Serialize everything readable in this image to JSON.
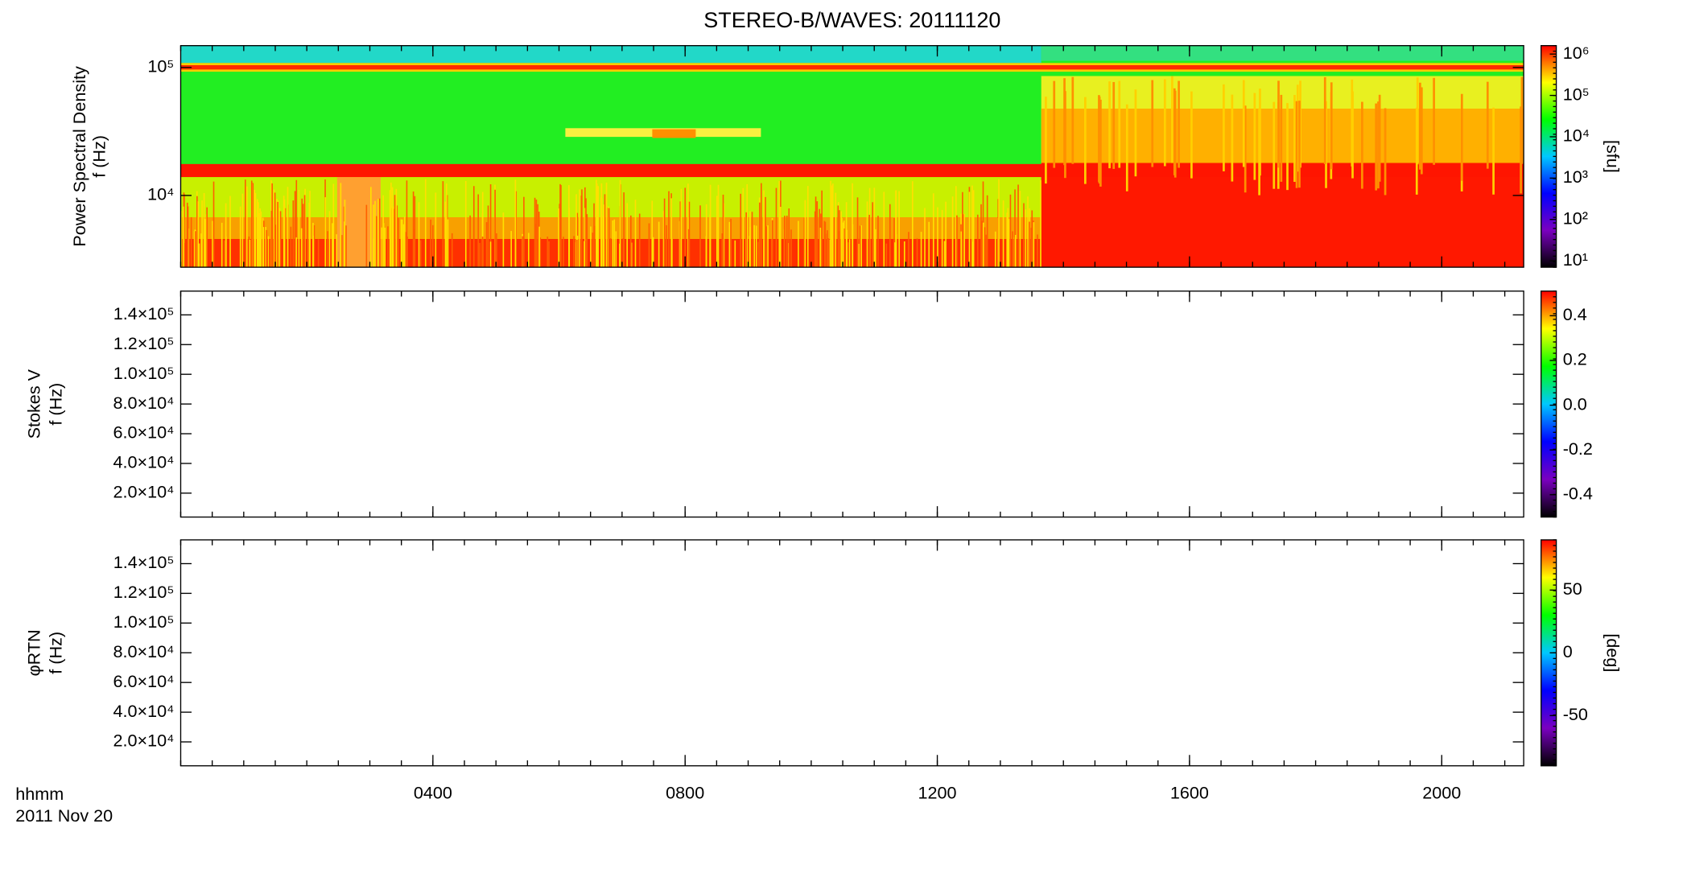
{
  "chart_data": [
    {
      "type": "spectrogram",
      "title": "STEREO-B/WAVES: 20111120",
      "ylabel": "Power Spectral Density",
      "ylabel2": "f (Hz)",
      "ylog": true,
      "ylim": [
        2750,
        148000
      ],
      "yticks": [
        {
          "value": 10000,
          "label": "10⁴"
        },
        {
          "value": 100000,
          "label": "10⁵"
        }
      ],
      "colorbar_label": "[sfu]",
      "clog": true,
      "clim": [
        7,
        1600000
      ],
      "cticks": [
        {
          "value": 10,
          "label": "10¹"
        },
        {
          "value": 100,
          "label": "10²"
        },
        {
          "value": 1000,
          "label": "10³"
        },
        {
          "value": 10000,
          "label": "10⁴"
        },
        {
          "value": 100000,
          "label": "10⁵"
        },
        {
          "value": 1000000,
          "label": "10⁶"
        }
      ],
      "colormap": [
        "#000000",
        "#7a00c0",
        "#0000ff",
        "#00c8ff",
        "#00ff00",
        "#ffff00",
        "#ff0000"
      ]
    },
    {
      "type": "spectrogram",
      "ylabel": "Stokes V",
      "ylabel2": "f (Hz)",
      "ylog": false,
      "ylim": [
        3900,
        156000
      ],
      "yticks": [
        {
          "value": 20000,
          "label": "2.0×10⁴"
        },
        {
          "value": 40000,
          "label": "4.0×10⁴"
        },
        {
          "value": 60000,
          "label": "6.0×10⁴"
        },
        {
          "value": 80000,
          "label": "8.0×10⁴"
        },
        {
          "value": 100000,
          "label": "1.0×10⁵"
        },
        {
          "value": 120000,
          "label": "1.2×10⁵"
        },
        {
          "value": 140000,
          "label": "1.4×10⁵"
        }
      ],
      "clog": false,
      "clim": [
        -0.5,
        0.51
      ],
      "cticks": [
        {
          "value": -0.4,
          "label": "-0.4"
        },
        {
          "value": -0.2,
          "label": "-0.2"
        },
        {
          "value": 0,
          "label": "0.0"
        },
        {
          "value": 0.2,
          "label": "0.2"
        },
        {
          "value": 0.4,
          "label": "0.4"
        }
      ]
    },
    {
      "type": "spectrogram",
      "ylabel": "φRTN",
      "ylabel2": "f (Hz)",
      "ylog": false,
      "ylim": [
        3900,
        156000
      ],
      "yticks": [
        {
          "value": 20000,
          "label": "2.0×10⁴"
        },
        {
          "value": 40000,
          "label": "4.0×10⁴"
        },
        {
          "value": 60000,
          "label": "6.0×10⁴"
        },
        {
          "value": 80000,
          "label": "8.0×10⁴"
        },
        {
          "value": 100000,
          "label": "1.0×10⁵"
        },
        {
          "value": 120000,
          "label": "1.2×10⁵"
        },
        {
          "value": 140000,
          "label": "1.4×10⁵"
        }
      ],
      "colorbar_label": "[deg]",
      "clog": false,
      "clim": [
        -90,
        90
      ],
      "cticks": [
        -50,
        0,
        50
      ],
      "xlabel": "hhmm",
      "xlabel2": "2011 Nov 20",
      "xlim": [
        0,
        21.3
      ],
      "xticks": [
        {
          "value": 4,
          "label": "0400"
        },
        {
          "value": 8,
          "label": "0800"
        },
        {
          "value": 12,
          "label": "1200"
        },
        {
          "value": 16,
          "label": "1600"
        },
        {
          "value": 20,
          "label": "2000"
        }
      ]
    }
  ]
}
